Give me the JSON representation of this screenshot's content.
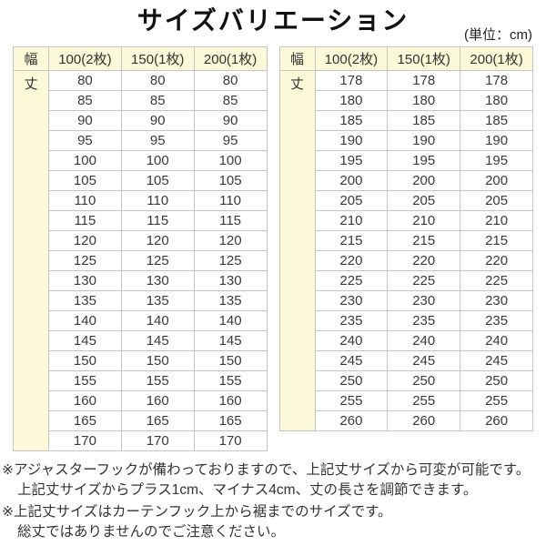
{
  "title": "サイズバリエーション",
  "unit_label": "(単位：cm)",
  "table_template": {
    "corner_label": "幅",
    "row_label": "丈",
    "columns": [
      "100(2枚)",
      "150(1枚)",
      "200(1枚)"
    ]
  },
  "tables": [
    {
      "name": "left",
      "lengths": [
        80,
        85,
        90,
        95,
        100,
        105,
        110,
        115,
        120,
        125,
        130,
        135,
        140,
        145,
        150,
        155,
        160,
        165,
        170
      ]
    },
    {
      "name": "right",
      "lengths": [
        178,
        180,
        185,
        190,
        195,
        200,
        205,
        210,
        215,
        220,
        225,
        230,
        235,
        240,
        245,
        250,
        255,
        260
      ]
    }
  ],
  "notes": [
    {
      "marker": "※",
      "lines": [
        "アジャスターフックが備わっておりますので、上記丈サイズから可変が可能です。",
        "上記丈サイズからプラス1cm、マイナス4cm、丈の長さを調節できます。"
      ]
    },
    {
      "marker": "※",
      "lines": [
        "上記丈サイズはカーテンフック上から裾までのサイズです。",
        "総丈ではありませんのでご注意ください。"
      ]
    }
  ],
  "colors": {
    "header_bg": "#fcf9d9",
    "border": "#c5c5c5",
    "text": "#333333",
    "background": "#ffffff"
  }
}
